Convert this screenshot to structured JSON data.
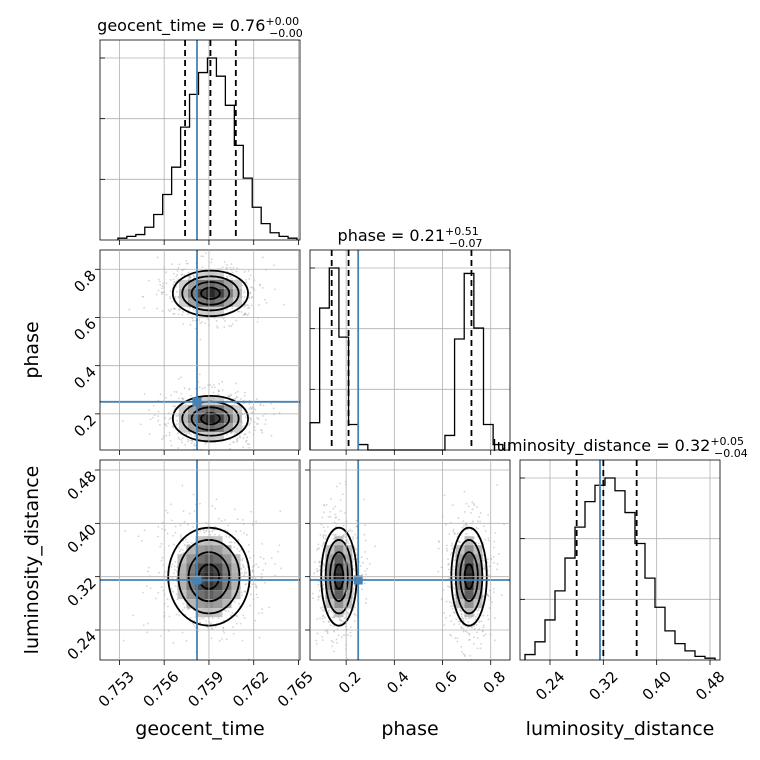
{
  "params": [
    "geocent_time",
    "phase",
    "luminosity_distance"
  ],
  "titles": [
    {
      "param": "geocent_time",
      "median": "0.76",
      "plus": "+0.00",
      "minus": "−0.00"
    },
    {
      "param": "phase",
      "median": "0.21",
      "plus": "+0.51",
      "minus": "−0.07"
    },
    {
      "param": "luminosity_distance",
      "median": "0.32",
      "plus": "+0.05",
      "minus": "−0.04"
    }
  ],
  "truths": {
    "geocent_time": 0.7582,
    "phase": 0.25,
    "luminosity_distance": 0.315
  },
  "colors": {
    "truth": "#4682b4",
    "contour": "#000000",
    "hist": "#000000",
    "grid": "#b0b0b0"
  },
  "axes": {
    "geocent_time": {
      "range": [
        0.7517,
        0.7651
      ],
      "ticks": [
        "0.753",
        "0.756",
        "0.759",
        "0.762",
        "0.765"
      ]
    },
    "phase": {
      "range": [
        0.05,
        0.88
      ],
      "ticks": [
        "0.2",
        "0.4",
        "0.6",
        "0.8"
      ]
    },
    "luminosity_distance": {
      "range": [
        0.195,
        0.495
      ],
      "ticks": [
        "0.24",
        "0.32",
        "0.40",
        "0.48"
      ]
    }
  },
  "chart_data": {
    "type": "corner",
    "grid": true,
    "quantile_lines": "dashed (16%, 50%, 84%)",
    "histograms": {
      "geocent_time": {
        "x": [
          0.7532,
          0.7538,
          0.7544,
          0.755,
          0.7556,
          0.7562,
          0.7568,
          0.7574,
          0.758,
          0.7586,
          0.7592,
          0.7598,
          0.7604,
          0.761,
          0.7616,
          0.7622,
          0.7628,
          0.7634,
          0.764,
          0.7646
        ],
        "counts": [
          1,
          2,
          3,
          7,
          14,
          25,
          40,
          62,
          80,
          92,
          100,
          90,
          74,
          52,
          34,
          18,
          9,
          4,
          2,
          1
        ],
        "quantiles": [
          0.7574,
          0.7591,
          0.7608
        ]
      },
      "phase": {
        "x": [
          0.07,
          0.11,
          0.15,
          0.19,
          0.23,
          0.27,
          0.31,
          0.35,
          0.39,
          0.43,
          0.47,
          0.51,
          0.55,
          0.59,
          0.63,
          0.67,
          0.71,
          0.75,
          0.79,
          0.83
        ],
        "counts": [
          15,
          78,
          100,
          62,
          14,
          3,
          0,
          0,
          0,
          0,
          0,
          0,
          0,
          0,
          8,
          61,
          97,
          67,
          14,
          3
        ],
        "quantiles": [
          0.14,
          0.21,
          0.72
        ]
      },
      "luminosity_distance": {
        "x": [
          0.21,
          0.225,
          0.24,
          0.255,
          0.27,
          0.285,
          0.3,
          0.315,
          0.33,
          0.345,
          0.36,
          0.375,
          0.39,
          0.405,
          0.42,
          0.435,
          0.45,
          0.465,
          0.48
        ],
        "counts": [
          3,
          10,
          22,
          38,
          56,
          73,
          87,
          96,
          100,
          93,
          81,
          64,
          45,
          29,
          16,
          9,
          5,
          2,
          1
        ],
        "quantiles": [
          0.28,
          0.32,
          0.37
        ]
      }
    },
    "joint_2d": [
      {
        "x": "geocent_time",
        "y": "phase",
        "modes": [
          {
            "cx": 0.7591,
            "cy": 0.7,
            "sx": 0.0012,
            "sy": 0.045
          },
          {
            "cx": 0.7591,
            "cy": 0.18,
            "sx": 0.0012,
            "sy": 0.045
          }
        ]
      },
      {
        "x": "geocent_time",
        "y": "luminosity_distance",
        "modes": [
          {
            "cx": 0.759,
            "cy": 0.32,
            "sx": 0.0013,
            "sy": 0.035
          }
        ]
      },
      {
        "x": "phase",
        "y": "luminosity_distance",
        "modes": [
          {
            "cx": 0.17,
            "cy": 0.32,
            "sx": 0.035,
            "sy": 0.035
          },
          {
            "cx": 0.71,
            "cy": 0.32,
            "sx": 0.035,
            "sy": 0.035
          }
        ]
      }
    ]
  }
}
